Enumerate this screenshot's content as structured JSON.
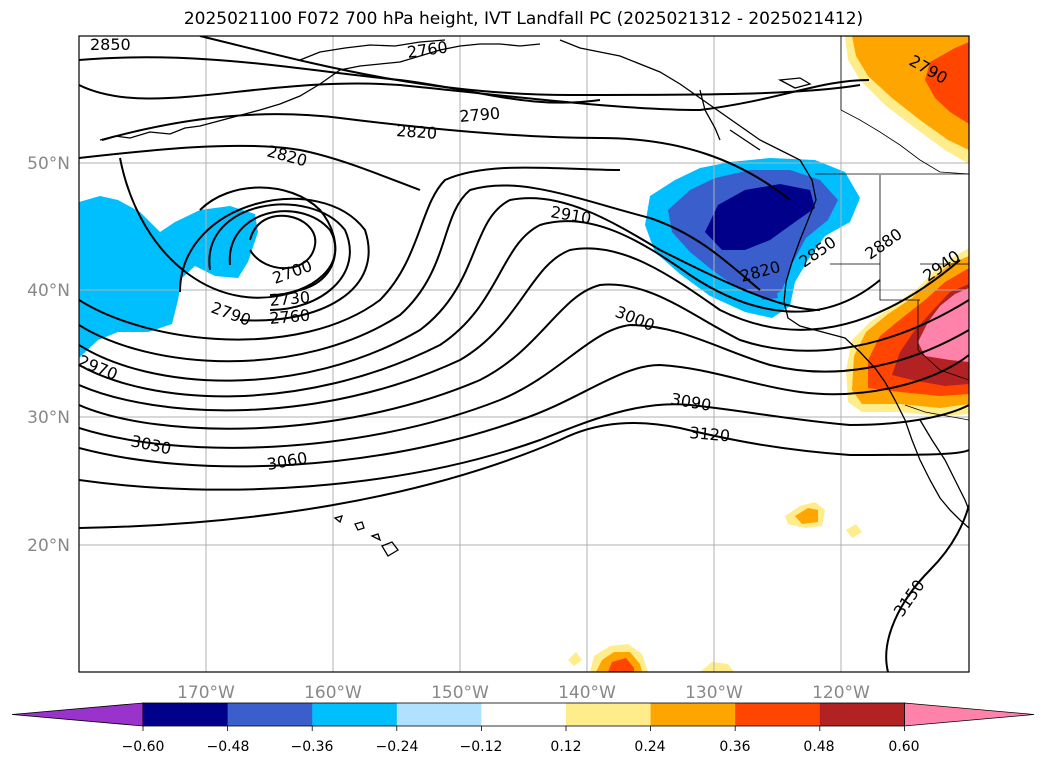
{
  "title": "2025021100 F072 700 hPa height, IVT Landfall PC (2025021312 - 2025021412)",
  "lon_ticks": [
    "170°W",
    "160°W",
    "150°W",
    "140°W",
    "130°W",
    "120°W"
  ],
  "lat_ticks": [
    "50°N",
    "40°N",
    "30°N",
    "20°N"
  ],
  "contour_labels": [
    {
      "text": "2850"
    },
    {
      "text": "2760"
    },
    {
      "text": "2790"
    },
    {
      "text": "2820"
    },
    {
      "text": "2820"
    },
    {
      "text": "2790"
    },
    {
      "text": "2910"
    },
    {
      "text": "2700"
    },
    {
      "text": "2730"
    },
    {
      "text": "2760"
    },
    {
      "text": "2790"
    },
    {
      "text": "2820"
    },
    {
      "text": "2850"
    },
    {
      "text": "2880"
    },
    {
      "text": "2940"
    },
    {
      "text": "3000"
    },
    {
      "text": "2970"
    },
    {
      "text": "3090"
    },
    {
      "text": "3030"
    },
    {
      "text": "3120"
    },
    {
      "text": "3060"
    },
    {
      "text": "3150"
    }
  ],
  "colorbar": {
    "ticks": [
      "−0.60",
      "−0.48",
      "−0.36",
      "−0.24",
      "−0.12",
      "0.12",
      "0.24",
      "0.36",
      "0.48",
      "0.60"
    ],
    "colors": [
      "#9933cc",
      "#00008b",
      "#3a5fcd",
      "#00bfff",
      "#b0e2ff",
      "#ffffff",
      "#ffec8b",
      "#ffa500",
      "#ff4500",
      "#b22222",
      "#ff82ab"
    ]
  }
}
